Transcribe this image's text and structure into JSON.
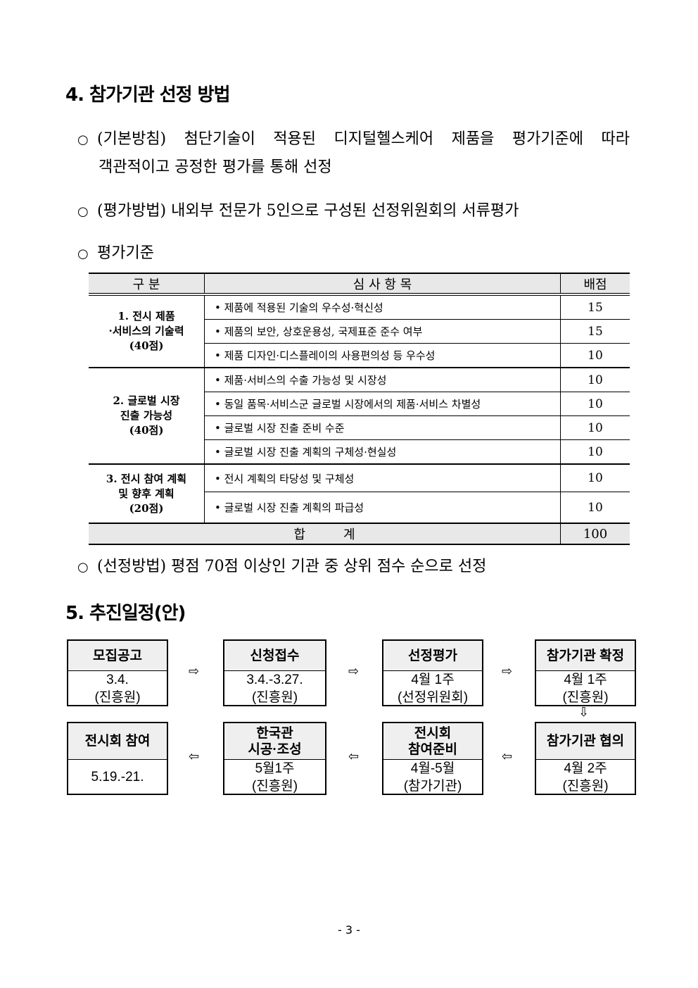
{
  "section4": {
    "heading": "4. 참가기관 선정 방법",
    "bullet_symbol": "○",
    "bullets": [
      {
        "line1": "(기본방침) 첨단기술이 적용된 디지털헬스케어 제품을 평가기준에 따라",
        "line2": "객관적이고 공정한 평가를 통해 선정"
      },
      {
        "line1": "(평가방법) 내외부 전문가 5인으로 구성된 선정위원회의 서류평가"
      },
      {
        "line1": "평가기준"
      }
    ],
    "table": {
      "headers": [
        "구 분",
        "심 사 항 목",
        "배점"
      ],
      "groups": [
        {
          "category": [
            "1. 전시 제품",
            "·서비스의 기술력",
            "(40점)"
          ],
          "rows": [
            {
              "item": "• 제품에 적용된 기술의 우수성·혁신성",
              "score": "15"
            },
            {
              "item": "• 제품의 보안, 상호운용성, 국제표준 준수 여부",
              "score": "15"
            },
            {
              "item": "• 제품 디자인·디스플레이의 사용편의성 등 우수성",
              "score": "10"
            }
          ]
        },
        {
          "category": [
            "2. 글로벌 시장",
            "진출 가능성",
            "(40점)"
          ],
          "rows": [
            {
              "item": "• 제품·서비스의 수출 가능성 및 시장성",
              "score": "10"
            },
            {
              "item": "• 동일 품목·서비스군 글로벌 시장에서의 제품·서비스 차별성",
              "score": "10"
            },
            {
              "item": "• 글로벌 시장 진출 준비 수준",
              "score": "10"
            },
            {
              "item": "• 글로벌 시장 진출 계획의 구체성·현실성",
              "score": "10"
            }
          ]
        },
        {
          "category": [
            "3. 전시 참여 계획",
            "및 향후 계획",
            "(20점)"
          ],
          "rows": [
            {
              "item": "• 전시 계획의 타당성 및 구체성",
              "score": "10"
            },
            {
              "item": "• 글로벌 시장 진출 계획의 파급성",
              "score": "10"
            }
          ]
        }
      ],
      "total_label": "합　　　계",
      "total_score": "100"
    },
    "bullet4": "(선정방법) 평점 70점 이상인 기관 중 상위 점수 순으로 선정"
  },
  "section5": {
    "heading": "5. 추진일정(안)",
    "steps": [
      {
        "title": [
          "모집공고"
        ],
        "body": [
          "3.4.",
          "(진흥원)"
        ]
      },
      {
        "title": [
          "신청접수"
        ],
        "body": [
          "3.4.-3.27.",
          "(진흥원)"
        ]
      },
      {
        "title": [
          "선정평가"
        ],
        "body": [
          "4월 1주",
          "(선정위원회)"
        ]
      },
      {
        "title": [
          "참가기관 확정"
        ],
        "body": [
          "4월 1주",
          "(진흥원)"
        ]
      },
      {
        "title": [
          "참가기관 협의"
        ],
        "body": [
          "4월 2주",
          "(진흥원)"
        ]
      },
      {
        "title": [
          "전시회",
          "참여준비"
        ],
        "body": [
          "4월-5월",
          "(참가기관)"
        ]
      },
      {
        "title": [
          "한국관",
          "시공·조성"
        ],
        "body": [
          "5월1주",
          "(진흥원)"
        ]
      },
      {
        "title": [
          "전시회 참여"
        ],
        "body": [
          "5.19.-21."
        ]
      }
    ],
    "arrows": {
      "right": "⇨",
      "left": "⇦",
      "down": "⇩"
    }
  },
  "page_number": "- 3 -"
}
